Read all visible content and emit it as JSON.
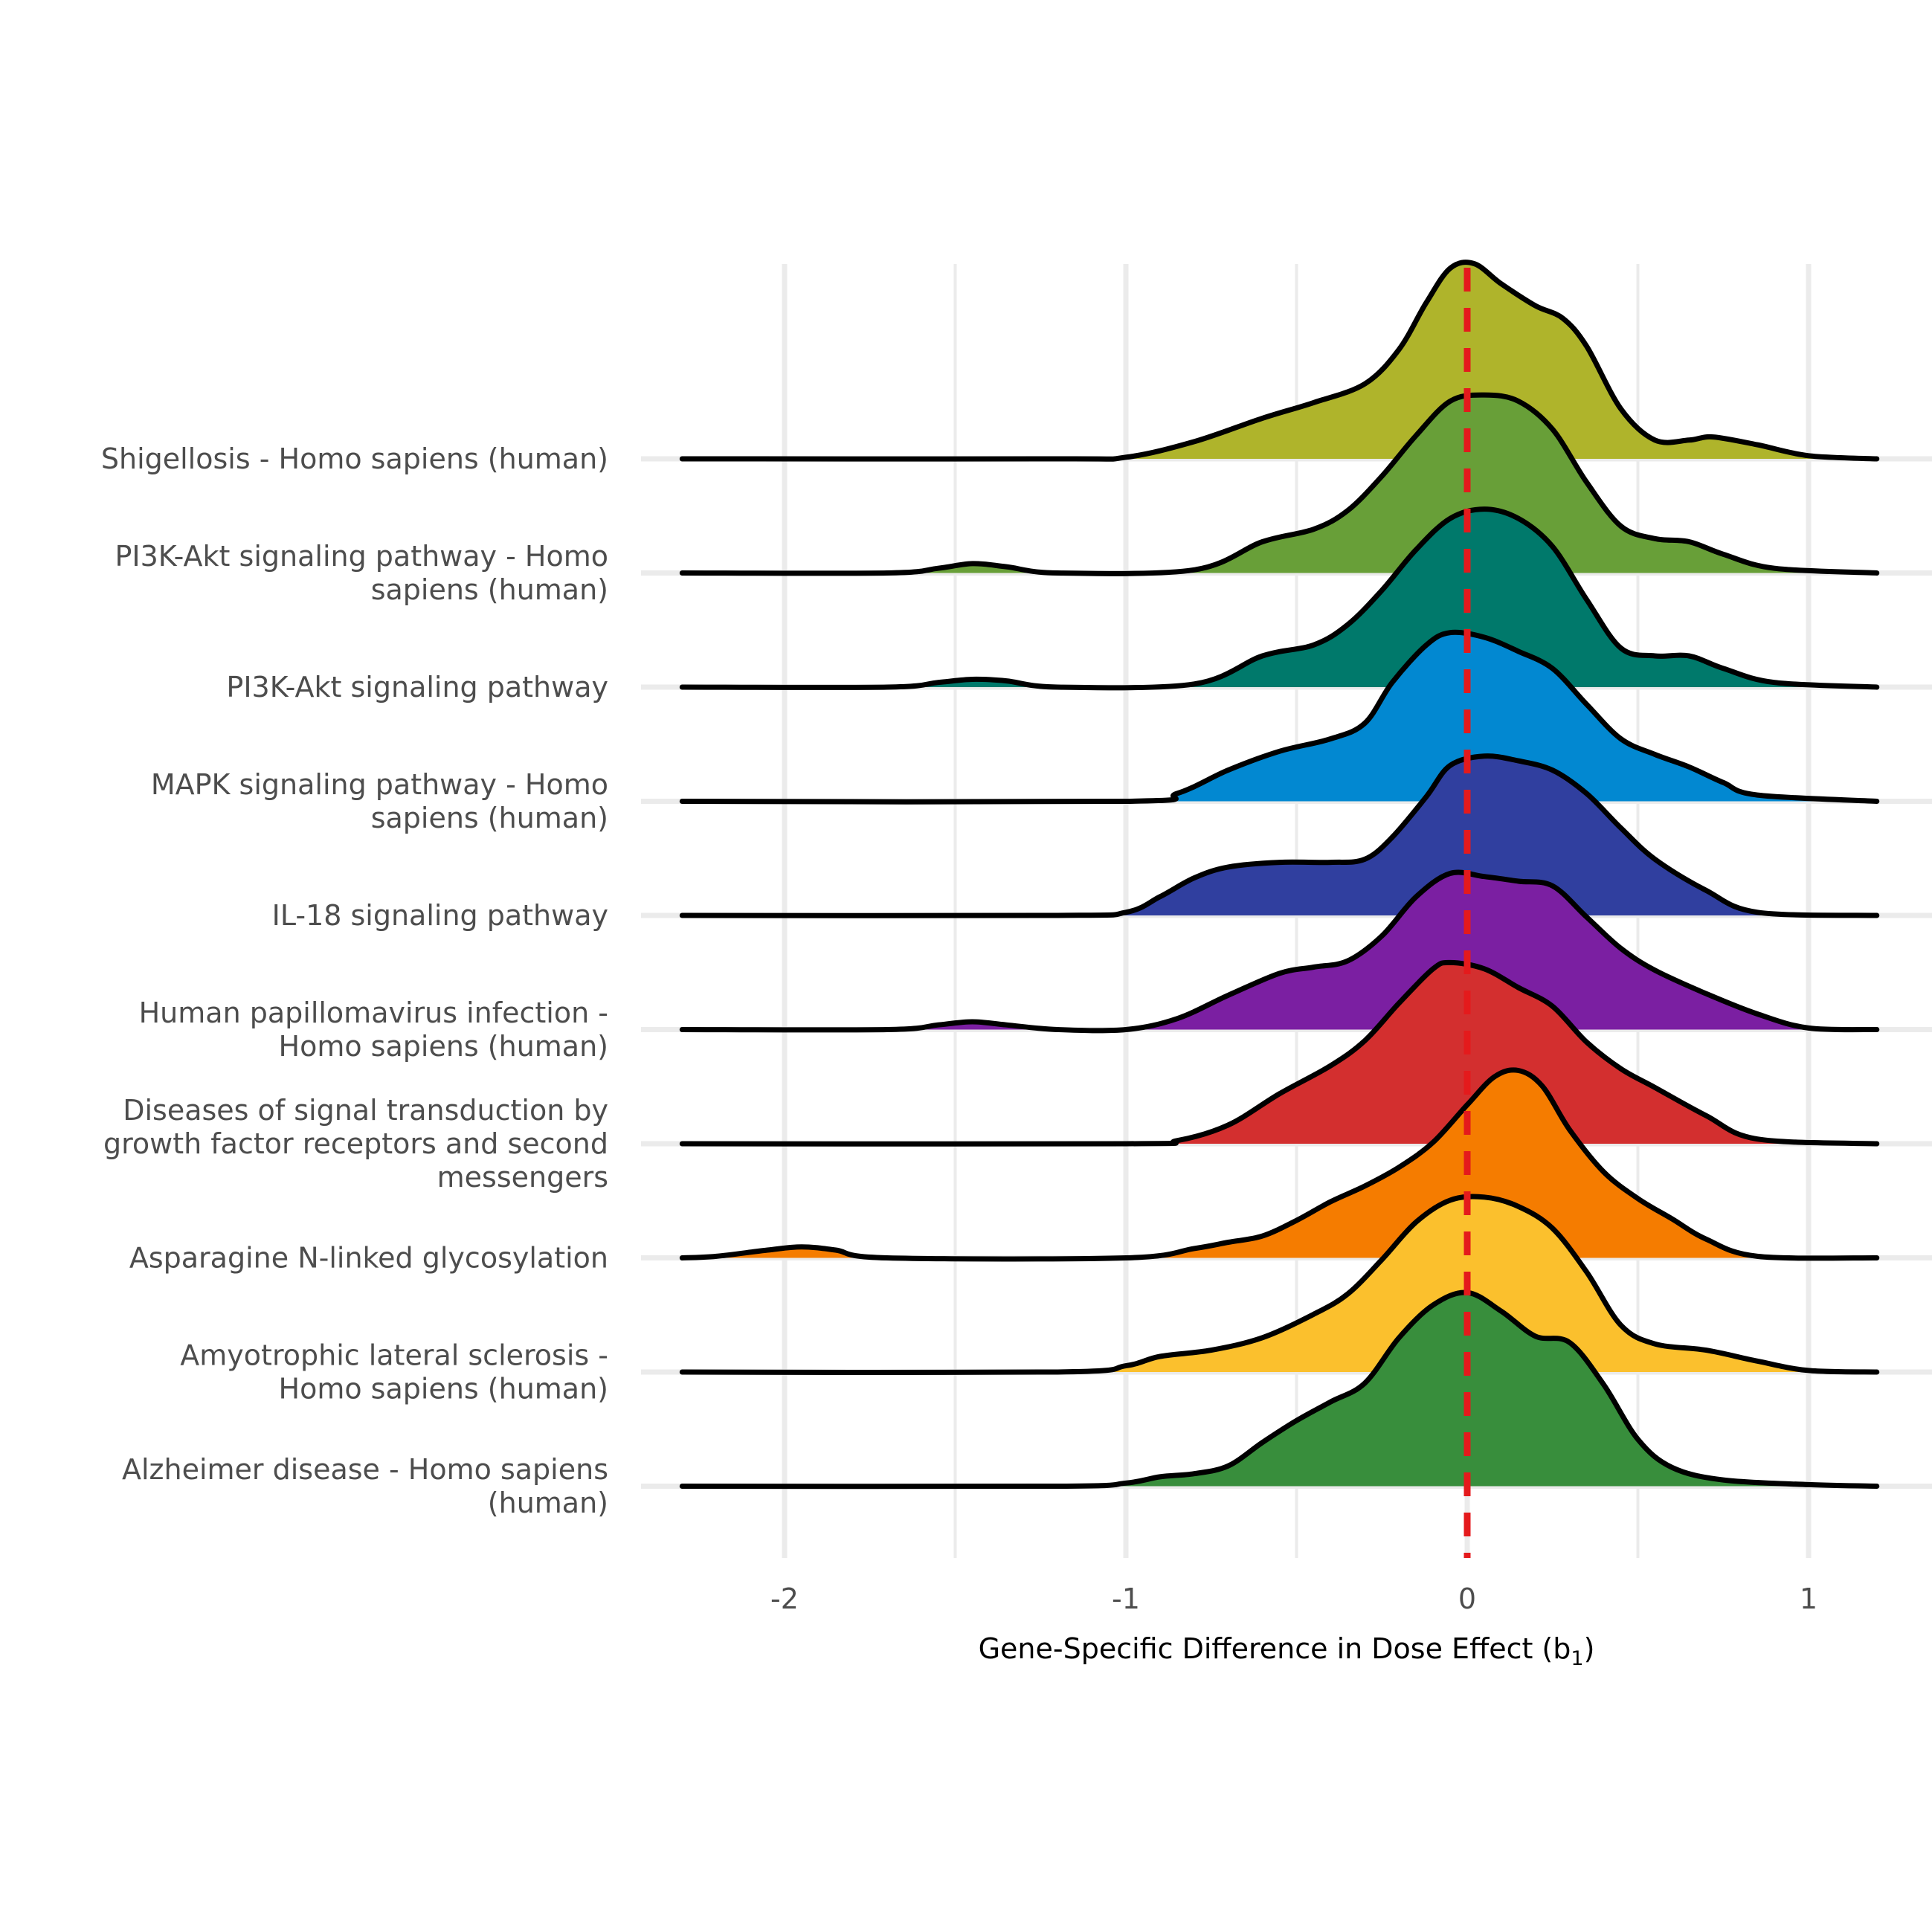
{
  "chart_data": {
    "type": "ridgeline",
    "title": "",
    "xlabel": "Gene-Specific Difference in Dose Effect",
    "xlabel_subscript": "b",
    "xlabel_subscript_index": "1",
    "ylabel": "",
    "xlim": [
      -2.3,
      1.2
    ],
    "x_ticks": [
      {
        "value": -2,
        "label": "-2"
      },
      {
        "value": -1,
        "label": "-1"
      },
      {
        "value": 0,
        "label": "0"
      },
      {
        "value": 1,
        "label": "1"
      }
    ],
    "reference_line": {
      "x": 0,
      "color": "#e41a1c",
      "style": "dashed"
    },
    "grid": true,
    "legend": "none",
    "series": [
      {
        "name": "Shigellosis - Homo sapiens (human)",
        "color": "#afb42b",
        "points": [
          [
            -2.3,
            0
          ],
          [
            -1.2,
            0
          ],
          [
            -1.0,
            0.01
          ],
          [
            -0.8,
            0.11
          ],
          [
            -0.6,
            0.26
          ],
          [
            -0.45,
            0.36
          ],
          [
            -0.3,
            0.48
          ],
          [
            -0.2,
            0.7
          ],
          [
            -0.12,
            1.0
          ],
          [
            -0.05,
            1.22
          ],
          [
            0.02,
            1.25
          ],
          [
            0.1,
            1.12
          ],
          [
            0.2,
            0.98
          ],
          [
            0.28,
            0.9
          ],
          [
            0.35,
            0.72
          ],
          [
            0.45,
            0.32
          ],
          [
            0.55,
            0.12
          ],
          [
            0.65,
            0.12
          ],
          [
            0.72,
            0.14
          ],
          [
            0.85,
            0.09
          ],
          [
            1.0,
            0.02
          ],
          [
            1.2,
            0
          ]
        ]
      },
      {
        "name": "PI3K-Akt signaling pathway - Homo sapiens (human)",
        "color": "#689f38",
        "points": [
          [
            -2.3,
            0
          ],
          [
            -1.7,
            0
          ],
          [
            -1.55,
            0.03
          ],
          [
            -1.45,
            0.06
          ],
          [
            -1.35,
            0.04
          ],
          [
            -1.2,
            0
          ],
          [
            -0.8,
            0.02
          ],
          [
            -0.6,
            0.2
          ],
          [
            -0.45,
            0.28
          ],
          [
            -0.35,
            0.4
          ],
          [
            -0.25,
            0.62
          ],
          [
            -0.15,
            0.88
          ],
          [
            -0.05,
            1.1
          ],
          [
            0.05,
            1.14
          ],
          [
            0.15,
            1.1
          ],
          [
            0.25,
            0.92
          ],
          [
            0.35,
            0.58
          ],
          [
            0.45,
            0.3
          ],
          [
            0.55,
            0.22
          ],
          [
            0.65,
            0.2
          ],
          [
            0.75,
            0.12
          ],
          [
            0.9,
            0.03
          ],
          [
            1.2,
            0
          ]
        ]
      },
      {
        "name": "PI3K-Akt signaling pathway",
        "color": "#00796b",
        "points": [
          [
            -2.3,
            0
          ],
          [
            -1.7,
            0
          ],
          [
            -1.55,
            0.03
          ],
          [
            -1.45,
            0.05
          ],
          [
            -1.35,
            0.04
          ],
          [
            -1.2,
            0
          ],
          [
            -0.8,
            0.02
          ],
          [
            -0.6,
            0.2
          ],
          [
            -0.45,
            0.27
          ],
          [
            -0.35,
            0.4
          ],
          [
            -0.25,
            0.62
          ],
          [
            -0.15,
            0.88
          ],
          [
            -0.05,
            1.08
          ],
          [
            0.05,
            1.14
          ],
          [
            0.15,
            1.08
          ],
          [
            0.25,
            0.9
          ],
          [
            0.35,
            0.56
          ],
          [
            0.45,
            0.25
          ],
          [
            0.55,
            0.2
          ],
          [
            0.65,
            0.2
          ],
          [
            0.75,
            0.12
          ],
          [
            0.9,
            0.03
          ],
          [
            1.2,
            0
          ]
        ]
      },
      {
        "name": "MAPK signaling pathway - Homo sapiens (human)",
        "color": "#0288d1",
        "points": [
          [
            -2.3,
            0
          ],
          [
            -1.0,
            0
          ],
          [
            -0.85,
            0.05
          ],
          [
            -0.7,
            0.2
          ],
          [
            -0.55,
            0.32
          ],
          [
            -0.4,
            0.4
          ],
          [
            -0.3,
            0.5
          ],
          [
            -0.22,
            0.76
          ],
          [
            -0.12,
            1.0
          ],
          [
            -0.05,
            1.08
          ],
          [
            0.05,
            1.05
          ],
          [
            0.15,
            0.96
          ],
          [
            0.25,
            0.85
          ],
          [
            0.35,
            0.62
          ],
          [
            0.45,
            0.4
          ],
          [
            0.55,
            0.3
          ],
          [
            0.65,
            0.22
          ],
          [
            0.75,
            0.12
          ],
          [
            0.85,
            0.04
          ],
          [
            1.2,
            0
          ]
        ]
      },
      {
        "name": "IL-18 signaling pathway",
        "color": "#303f9f",
        "points": [
          [
            -2.3,
            0
          ],
          [
            -1.2,
            0
          ],
          [
            -1.0,
            0.02
          ],
          [
            -0.9,
            0.12
          ],
          [
            -0.8,
            0.24
          ],
          [
            -0.7,
            0.31
          ],
          [
            -0.55,
            0.34
          ],
          [
            -0.4,
            0.34
          ],
          [
            -0.3,
            0.36
          ],
          [
            -0.22,
            0.5
          ],
          [
            -0.12,
            0.76
          ],
          [
            -0.05,
            0.96
          ],
          [
            0.05,
            1.02
          ],
          [
            0.15,
            0.99
          ],
          [
            0.25,
            0.93
          ],
          [
            0.35,
            0.78
          ],
          [
            0.45,
            0.56
          ],
          [
            0.55,
            0.36
          ],
          [
            0.7,
            0.16
          ],
          [
            0.85,
            0.02
          ],
          [
            1.2,
            0
          ]
        ]
      },
      {
        "name": "Human papillomavirus infection - Homo sapiens (human)",
        "color": "#7b1fa2",
        "points": [
          [
            -2.3,
            0
          ],
          [
            -1.7,
            0
          ],
          [
            -1.55,
            0.03
          ],
          [
            -1.45,
            0.05
          ],
          [
            -1.35,
            0.03
          ],
          [
            -1.2,
            0
          ],
          [
            -1.0,
            0
          ],
          [
            -0.85,
            0.07
          ],
          [
            -0.7,
            0.22
          ],
          [
            -0.55,
            0.36
          ],
          [
            -0.45,
            0.4
          ],
          [
            -0.35,
            0.44
          ],
          [
            -0.25,
            0.6
          ],
          [
            -0.15,
            0.85
          ],
          [
            -0.05,
            1.0
          ],
          [
            0.05,
            0.98
          ],
          [
            0.15,
            0.95
          ],
          [
            0.25,
            0.92
          ],
          [
            0.35,
            0.72
          ],
          [
            0.45,
            0.52
          ],
          [
            0.55,
            0.38
          ],
          [
            0.7,
            0.23
          ],
          [
            0.85,
            0.1
          ],
          [
            1.0,
            0.01
          ],
          [
            1.2,
            0
          ]
        ]
      },
      {
        "name": "Diseases of signal transduction by growth factor receptors and second messengers",
        "color": "#d32f2f",
        "points": [
          [
            -2.3,
            0
          ],
          [
            -1.0,
            0
          ],
          [
            -0.85,
            0.02
          ],
          [
            -0.7,
            0.12
          ],
          [
            -0.55,
            0.32
          ],
          [
            -0.4,
            0.5
          ],
          [
            -0.3,
            0.66
          ],
          [
            -0.2,
            0.9
          ],
          [
            -0.1,
            1.12
          ],
          [
            -0.05,
            1.16
          ],
          [
            0.05,
            1.12
          ],
          [
            0.15,
            1.0
          ],
          [
            0.25,
            0.88
          ],
          [
            0.35,
            0.65
          ],
          [
            0.45,
            0.48
          ],
          [
            0.55,
            0.36
          ],
          [
            0.7,
            0.18
          ],
          [
            0.85,
            0.03
          ],
          [
            1.2,
            0
          ]
        ]
      },
      {
        "name": "Asparagine N-linked glycosylation",
        "color": "#f57c00",
        "points": [
          [
            -2.3,
            0
          ],
          [
            -2.2,
            0.01
          ],
          [
            -2.05,
            0.05
          ],
          [
            -1.95,
            0.07
          ],
          [
            -1.85,
            0.05
          ],
          [
            -1.7,
            0
          ],
          [
            -1.0,
            0
          ],
          [
            -0.8,
            0.06
          ],
          [
            -0.7,
            0.1
          ],
          [
            -0.6,
            0.14
          ],
          [
            -0.5,
            0.24
          ],
          [
            -0.4,
            0.36
          ],
          [
            -0.3,
            0.46
          ],
          [
            -0.2,
            0.58
          ],
          [
            -0.1,
            0.74
          ],
          [
            0.0,
            0.98
          ],
          [
            0.08,
            1.16
          ],
          [
            0.15,
            1.2
          ],
          [
            0.22,
            1.1
          ],
          [
            0.3,
            0.82
          ],
          [
            0.4,
            0.55
          ],
          [
            0.5,
            0.38
          ],
          [
            0.6,
            0.25
          ],
          [
            0.7,
            0.12
          ],
          [
            0.85,
            0.01
          ],
          [
            1.2,
            0
          ]
        ]
      },
      {
        "name": "Amyotrophic lateral sclerosis - Homo sapiens (human)",
        "color": "#fbc02d",
        "points": [
          [
            -2.3,
            0
          ],
          [
            -1.2,
            0
          ],
          [
            -1.0,
            0.04
          ],
          [
            -0.9,
            0.1
          ],
          [
            -0.75,
            0.14
          ],
          [
            -0.6,
            0.22
          ],
          [
            -0.45,
            0.37
          ],
          [
            -0.35,
            0.5
          ],
          [
            -0.25,
            0.72
          ],
          [
            -0.15,
            0.96
          ],
          [
            -0.05,
            1.1
          ],
          [
            0.05,
            1.12
          ],
          [
            0.15,
            1.06
          ],
          [
            0.25,
            0.92
          ],
          [
            0.35,
            0.64
          ],
          [
            0.45,
            0.3
          ],
          [
            0.55,
            0.18
          ],
          [
            0.7,
            0.14
          ],
          [
            0.85,
            0.07
          ],
          [
            1.0,
            0.01
          ],
          [
            1.2,
            0
          ]
        ]
      },
      {
        "name": "Alzheimer disease - Homo sapiens (human)",
        "color": "#388e3c",
        "points": [
          [
            -2.3,
            0
          ],
          [
            -1.2,
            0
          ],
          [
            -1.0,
            0.02
          ],
          [
            -0.9,
            0.06
          ],
          [
            -0.8,
            0.08
          ],
          [
            -0.7,
            0.13
          ],
          [
            -0.6,
            0.28
          ],
          [
            -0.5,
            0.42
          ],
          [
            -0.4,
            0.54
          ],
          [
            -0.3,
            0.66
          ],
          [
            -0.2,
            0.95
          ],
          [
            -0.1,
            1.16
          ],
          [
            0.0,
            1.24
          ],
          [
            0.1,
            1.12
          ],
          [
            0.2,
            0.96
          ],
          [
            0.3,
            0.92
          ],
          [
            0.4,
            0.65
          ],
          [
            0.5,
            0.3
          ],
          [
            0.6,
            0.12
          ],
          [
            0.75,
            0.04
          ],
          [
            1.0,
            0.01
          ],
          [
            1.2,
            0
          ]
        ]
      }
    ],
    "categories": [
      "Shigellosis - Homo sapiens (human)",
      "PI3K-Akt signaling pathway - Homo sapiens (human)",
      "PI3K-Akt signaling pathway",
      "MAPK signaling pathway - Homo sapiens (human)",
      "IL-18 signaling pathway",
      "Human papillomavirus infection - Homo sapiens (human)",
      "Diseases of signal transduction by growth factor receptors and second messengers",
      "Asparagine N-linked glycosylation",
      "Amyotrophic lateral sclerosis - Homo sapiens (human)",
      "Alzheimer disease - Homo sapiens (human)"
    ]
  }
}
